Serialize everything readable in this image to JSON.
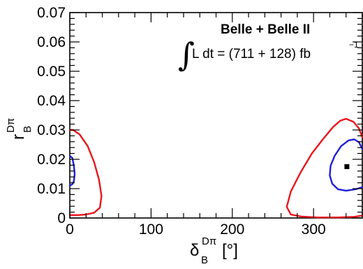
{
  "chart_data": {
    "type": "contour",
    "experiment_label": "Belle + Belle II",
    "luminosity_label": {
      "integral_sign": "∫",
      "text": "L dt = (711 + 128) fb",
      "superscript": "−1"
    },
    "xaxis": {
      "symbol": "δ",
      "subscript": "B",
      "superscript": "Dπ",
      "unit": "[°]",
      "range": [
        0,
        360
      ],
      "ticks": [
        0,
        100,
        200,
        300
      ],
      "tick_labels": [
        "0",
        "100",
        "200",
        "300"
      ]
    },
    "yaxis": {
      "symbol": "r",
      "subscript": "B",
      "superscript": "Dπ",
      "range": [
        0,
        0.07
      ],
      "ticks": [
        0,
        0.01,
        0.02,
        0.03,
        0.04,
        0.05,
        0.06,
        0.07
      ],
      "tick_labels": [
        "0",
        "0.01",
        "0.02",
        "0.03",
        "0.04",
        "0.05",
        "0.06",
        "0.07"
      ]
    },
    "best_fit": {
      "x": 341,
      "y": 0.0175
    },
    "contours": [
      {
        "color": "#e8161b",
        "segments": [
          [
            [
              0,
              0.03
            ],
            [
              4,
              0.03
            ],
            [
              12,
              0.0285
            ],
            [
              22,
              0.0245
            ],
            [
              30,
              0.019
            ],
            [
              36,
              0.013
            ],
            [
              39,
              0.0075
            ],
            [
              37,
              0.0035
            ],
            [
              30,
              0.0018
            ],
            [
              20,
              0.0012
            ],
            [
              10,
              0.001
            ],
            [
              0,
              0.001
            ]
          ],
          [
            [
              360,
              0.0275
            ],
            [
              356,
              0.0305
            ],
            [
              349,
              0.0328
            ],
            [
              340,
              0.0338
            ],
            [
              333,
              0.0332
            ],
            [
              324,
              0.031
            ],
            [
              312,
              0.027
            ],
            [
              298,
              0.022
            ],
            [
              284,
              0.0155
            ],
            [
              272,
              0.009
            ],
            [
              267,
              0.0038
            ],
            [
              272,
              0.0012
            ],
            [
              285,
              0.0005
            ],
            [
              305,
              0.0002
            ],
            [
              330,
              0.0002
            ],
            [
              350,
              0.0004
            ],
            [
              360,
              0.0008
            ]
          ]
        ]
      },
      {
        "color": "#1f1fd6",
        "segments": [
          [
            [
              0,
              0.0212
            ],
            [
              3,
              0.0205
            ],
            [
              5,
              0.018
            ],
            [
              6,
              0.015
            ],
            [
              5,
              0.0125
            ],
            [
              3,
              0.0115
            ],
            [
              0,
              0.011
            ]
          ],
          [
            [
              360,
              0.0235
            ],
            [
              356,
              0.0258
            ],
            [
              350,
              0.0268
            ],
            [
              343,
              0.0264
            ],
            [
              334,
              0.0245
            ],
            [
              326,
              0.0212
            ],
            [
              321,
              0.0178
            ],
            [
              320,
              0.0145
            ],
            [
              323,
              0.0117
            ],
            [
              330,
              0.0098
            ],
            [
              340,
              0.0093
            ],
            [
              352,
              0.0098
            ],
            [
              360,
              0.0105
            ]
          ]
        ]
      }
    ]
  }
}
